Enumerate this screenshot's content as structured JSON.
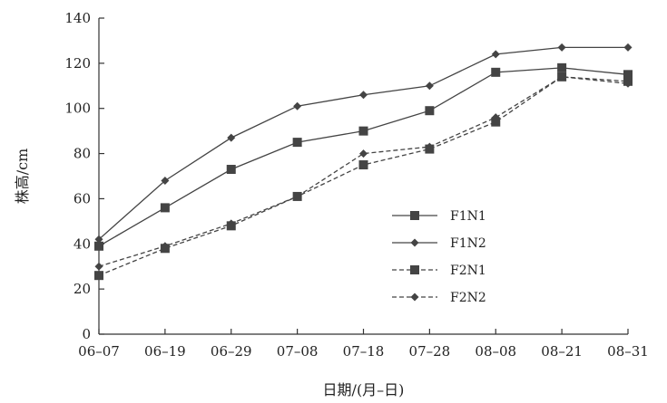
{
  "chart_data": {
    "type": "line",
    "title": "",
    "xlabel": "日期/(月–日)",
    "ylabel": "株高/cm",
    "categories": [
      "06–07",
      "06–19",
      "06–29",
      "07–08",
      "07–18",
      "07–28",
      "08–08",
      "08–21",
      "08–31"
    ],
    "ylim": [
      0,
      140
    ],
    "yticks": [
      0,
      20,
      40,
      60,
      80,
      100,
      120,
      140
    ],
    "grid": false,
    "legend_position": "center-right",
    "series": [
      {
        "name": "F1N1",
        "values": [
          39,
          56,
          73,
          85,
          90,
          99,
          116,
          118,
          115
        ],
        "line": "solid",
        "marker": "square",
        "color": "#444444"
      },
      {
        "name": "F1N2",
        "values": [
          42,
          68,
          87,
          101,
          106,
          110,
          124,
          127,
          127
        ],
        "line": "solid",
        "marker": "diamond",
        "color": "#444444"
      },
      {
        "name": "F2N1",
        "values": [
          26,
          38,
          48,
          61,
          75,
          82,
          94,
          114,
          112
        ],
        "line": "dashed",
        "marker": "square",
        "color": "#444444"
      },
      {
        "name": "F2N2",
        "values": [
          30,
          39,
          49,
          61,
          80,
          83,
          96,
          114,
          111
        ],
        "line": "dashed",
        "marker": "diamond",
        "color": "#444444"
      }
    ]
  }
}
